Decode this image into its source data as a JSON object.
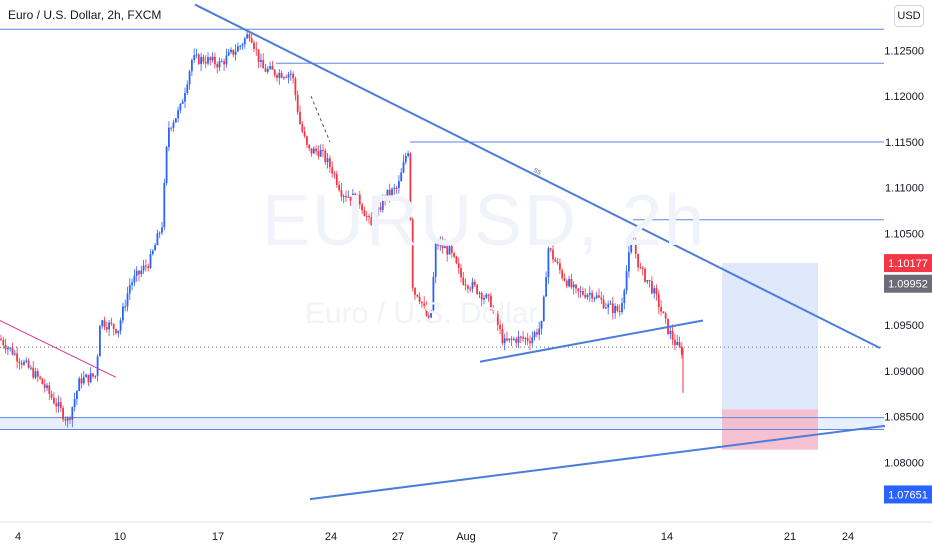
{
  "header": {
    "title": "Euro / U.S. Dollar, 2h, FXCM",
    "currency": "USD"
  },
  "watermark": {
    "symbol": "EURUSD, 2h",
    "name": "Euro / U.S. Dollar"
  },
  "annotation": {
    "wave_label": "ss"
  },
  "colors": {
    "up": "#2962ff",
    "down": "#f23645",
    "trendline": "#4c7ddb",
    "hline": "#5b86e5",
    "target_zone": "#dbe4fb",
    "stop_zone": "#f3b6c8",
    "support_band": "#dce6f8",
    "price_badge": "#f23645",
    "prev_badge": "#6a6d78",
    "lower_badge": "#2962ff"
  },
  "chart_data": {
    "type": "candlestick",
    "symbol": "EURUSD",
    "timeframe": "2h",
    "x_tick_labels": [
      "4",
      "10",
      "17",
      "24",
      "27",
      "Aug",
      "7",
      "14",
      "21",
      "24"
    ],
    "y_tick_labels": [
      "1.12500",
      "1.12000",
      "1.11500",
      "1.11000",
      "1.10500",
      "1.09500",
      "1.09000",
      "1.08500",
      "1.08000"
    ],
    "ylim": [
      1.0735,
      1.1305
    ],
    "price_badges": [
      {
        "label": "1.10177",
        "value": 1.10177,
        "role": "current"
      },
      {
        "label": "1.09952",
        "value": 1.09952,
        "role": "previous"
      },
      {
        "label": "1.07651",
        "value": 1.07651,
        "role": "level"
      }
    ],
    "horizontal_levels": [
      1.1273,
      1.1236,
      1.115,
      1.1065,
      1.0849,
      1.0836
    ],
    "price_path": [
      [
        0,
        1.0935
      ],
      [
        40,
        1.089
      ],
      [
        68,
        1.0845
      ],
      [
        80,
        1.089
      ],
      [
        96,
        1.0895
      ],
      [
        100,
        1.0955
      ],
      [
        118,
        1.0945
      ],
      [
        130,
        1.0995
      ],
      [
        150,
        1.102
      ],
      [
        162,
        1.106
      ],
      [
        168,
        1.1165
      ],
      [
        180,
        1.1185
      ],
      [
        192,
        1.124
      ],
      [
        205,
        1.124
      ],
      [
        220,
        1.1235
      ],
      [
        240,
        1.1255
      ],
      [
        250,
        1.127
      ],
      [
        262,
        1.123
      ],
      [
        278,
        1.1225
      ],
      [
        292,
        1.1225
      ],
      [
        300,
        1.117
      ],
      [
        308,
        1.114
      ],
      [
        320,
        1.114
      ],
      [
        332,
        1.112
      ],
      [
        342,
        1.1095
      ],
      [
        360,
        1.1085
      ],
      [
        372,
        1.1055
      ],
      [
        384,
        1.109
      ],
      [
        398,
        1.11
      ],
      [
        408,
        1.1145
      ],
      [
        413,
        1.0985
      ],
      [
        418,
        1.0985
      ],
      [
        430,
        1.095
      ],
      [
        436,
        1.104
      ],
      [
        450,
        1.103
      ],
      [
        462,
        1.1
      ],
      [
        476,
        1.099
      ],
      [
        490,
        1.0975
      ],
      [
        504,
        1.093
      ],
      [
        516,
        1.0935
      ],
      [
        530,
        1.0935
      ],
      [
        542,
        1.095
      ],
      [
        548,
        1.1035
      ],
      [
        562,
        1.1005
      ],
      [
        576,
        1.0985
      ],
      [
        592,
        1.0985
      ],
      [
        608,
        1.097
      ],
      [
        620,
        1.0965
      ],
      [
        632,
        1.1045
      ],
      [
        640,
        1.101
      ],
      [
        650,
        1.0995
      ],
      [
        658,
        1.0975
      ],
      [
        668,
        1.0945
      ],
      [
        678,
        1.0925
      ],
      [
        684,
        1.092
      ]
    ],
    "trendlines": [
      {
        "name": "descending-resistance",
        "from": [
          195,
          1.13
        ],
        "to": [
          880,
          1.0925
        ]
      },
      {
        "name": "small-rising-support",
        "from": [
          480,
          1.091
        ],
        "to": [
          703,
          1.0955
        ]
      },
      {
        "name": "long-rising-support",
        "from": [
          310,
          1.076
        ],
        "to": [
          885,
          1.084
        ]
      },
      {
        "name": "early-descending",
        "from": [
          0,
          1.0955
        ],
        "to": [
          116,
          1.0893
        ]
      }
    ],
    "position_zones": [
      {
        "name": "target",
        "x1": 722,
        "x2": 818,
        "y1": 1.10177,
        "y2": 1.0858
      },
      {
        "name": "stop",
        "x1": 722,
        "x2": 818,
        "y1": 1.0858,
        "y2": 1.0814
      }
    ],
    "current_price_dotted": 1.0926
  }
}
